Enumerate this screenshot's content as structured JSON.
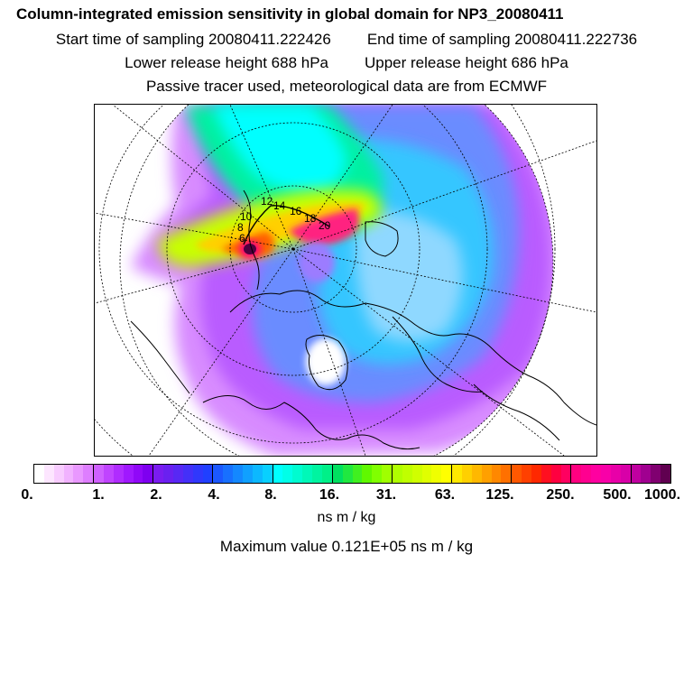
{
  "header": {
    "title": "Column-integrated emission sensitivity in global domain for NP3_20080411",
    "start_time": "Start time of sampling 20080411.222426",
    "end_time": "End time of sampling 20080411.222736",
    "lower_release": "Lower release height  688 hPa",
    "upper_release": "Upper release height  686 hPa",
    "tracer_note": "Passive tracer used, meteorological data are from ECMWF"
  },
  "map": {
    "track_labels": [
      "12",
      "14",
      "16",
      "18",
      "20",
      "10",
      "8",
      "6"
    ]
  },
  "colorbar": {
    "ticks": [
      "0.",
      "1.",
      "2.",
      "4.",
      "8.",
      "16.",
      "31.",
      "63.",
      "125.",
      "250.",
      "500.",
      "1000."
    ],
    "colors": [
      "#ffffff",
      "#fde6ff",
      "#f8ccff",
      "#f1b2ff",
      "#e998ff",
      "#de7eff",
      "#cf60ff",
      "#c044ff",
      "#b02cff",
      "#a018ff",
      "#9008f8",
      "#7e00f0",
      "#7a1cf0",
      "#6a20f0",
      "#5828f4",
      "#4430f8",
      "#3038fc",
      "#2040ff",
      "#1c58ff",
      "#1870ff",
      "#1488ff",
      "#10a0ff",
      "#0cb8ff",
      "#08d0ff",
      "#00ffff",
      "#00ffe8",
      "#00fcd0",
      "#00f8b8",
      "#00f4a0",
      "#00f088",
      "#00e060",
      "#20e840",
      "#40f020",
      "#60f800",
      "#80ff00",
      "#a0ff00",
      "#b0ff00",
      "#c0ff00",
      "#d0ff00",
      "#e0ff00",
      "#f0ff00",
      "#ffff00",
      "#ffe800",
      "#ffd000",
      "#ffb800",
      "#ffa000",
      "#ff8800",
      "#ff7000",
      "#ff5800",
      "#ff4000",
      "#ff2800",
      "#ff1020",
      "#ff0040",
      "#ff0060",
      "#ff0080",
      "#ff0090",
      "#ff00a0",
      "#f800a8",
      "#e800a8",
      "#d800a8",
      "#c000a0",
      "#a00090",
      "#800070",
      "#600050"
    ]
  },
  "units": "ns m / kg",
  "max_value": "Maximum value  0.121E+05 ns m / kg"
}
